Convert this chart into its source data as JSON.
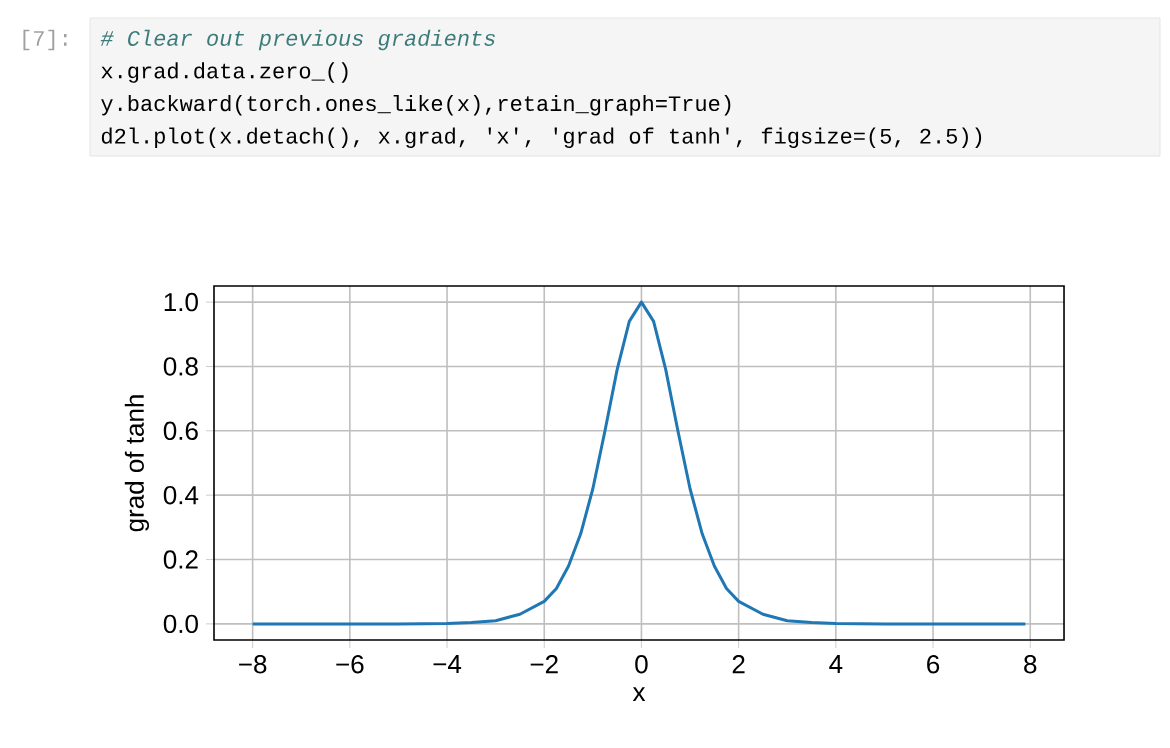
{
  "chart_data": {
    "type": "line",
    "xlabel": "x",
    "ylabel": "grad of tanh",
    "annotations": [
      "[7]:",
      "# Clear out previous gradients",
      "x.grad.data.zero_()",
      "y.backward(torch.ones_like(x),retain_graph=True)",
      "d2l.plot(x.detach(), x.grad, 'x', 'grad of tanh', figsize=(5, 2.5))"
    ],
    "x": [
      -8,
      -7,
      -6,
      -5,
      -4,
      -3.5,
      -3,
      -2.5,
      -2,
      -1.75,
      -1.5,
      -1.25,
      -1,
      -0.75,
      -0.5,
      -0.25,
      0,
      0.25,
      0.5,
      0.75,
      1,
      1.25,
      1.5,
      1.75,
      2,
      2.5,
      3,
      3.5,
      4,
      5,
      6,
      7,
      7.9
    ],
    "series": [
      {
        "color": "#1f77b4",
        "values": [
          0,
          0,
          0,
          0,
          0.001,
          0.004,
          0.01,
          0.03,
          0.07,
          0.11,
          0.18,
          0.28,
          0.42,
          0.6,
          0.79,
          0.94,
          1.0,
          0.94,
          0.79,
          0.6,
          0.42,
          0.28,
          0.18,
          0.11,
          0.07,
          0.03,
          0.01,
          0.004,
          0.001,
          0,
          0,
          0,
          0
        ]
      }
    ],
    "xlim": [
      -8.795,
      8.695
    ],
    "ylim": [
      -0.05,
      1.05
    ],
    "xticks": [
      {
        "value": -8,
        "label": "−8"
      },
      {
        "value": -6,
        "label": "−6"
      },
      {
        "value": -4,
        "label": "−4"
      },
      {
        "value": -2,
        "label": "−2"
      },
      0,
      2,
      4,
      6,
      8
    ],
    "yticks": [
      {
        "value": 0,
        "label": "0.0"
      },
      {
        "value": 0.2,
        "label": "0.2"
      },
      {
        "value": 0.4,
        "label": "0.4"
      },
      {
        "value": 0.6,
        "label": "0.6"
      },
      {
        "value": 0.8,
        "label": "0.8"
      },
      {
        "value": 1.0,
        "label": "1.0"
      }
    ],
    "grid": true,
    "line_style": "solid",
    "marker": "none"
  }
}
